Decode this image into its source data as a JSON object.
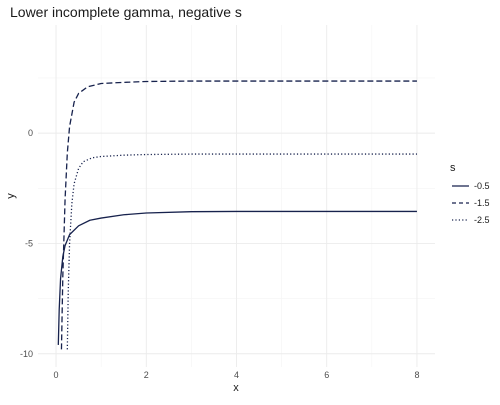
{
  "chart_data": {
    "type": "line",
    "title": "Lower incomplete gamma, negative s",
    "xlabel": "x",
    "ylabel": "y",
    "xlim": [
      -0.4,
      8.4
    ],
    "ylim": [
      -10.6,
      4.9
    ],
    "x_ticks": [
      0,
      2,
      4,
      6,
      8
    ],
    "y_ticks": [
      -10,
      -5,
      0
    ],
    "grid": true,
    "legend": {
      "title": "s",
      "position": "right"
    },
    "series": [
      {
        "name": "-0.5",
        "line_style": "solid",
        "x": [
          0.05,
          0.07,
          0.1,
          0.15,
          0.2,
          0.3,
          0.5,
          0.75,
          1,
          1.5,
          2,
          3,
          4,
          6,
          8
        ],
        "y": [
          -9.6,
          -8.0,
          -6.6,
          -5.6,
          -5.1,
          -4.6,
          -4.2,
          -3.95,
          -3.85,
          -3.7,
          -3.62,
          -3.56,
          -3.55,
          -3.55,
          -3.55
        ]
      },
      {
        "name": "-1.5",
        "line_style": "dashed",
        "x": [
          0.12,
          0.15,
          0.2,
          0.25,
          0.3,
          0.4,
          0.5,
          0.7,
          1,
          1.5,
          2,
          3,
          4,
          6,
          8
        ],
        "y": [
          -9.8,
          -6.5,
          -3.0,
          -0.9,
          0.3,
          1.4,
          1.8,
          2.1,
          2.25,
          2.3,
          2.34,
          2.36,
          2.36,
          2.36,
          2.36
        ]
      },
      {
        "name": "-2.5",
        "line_style": "dotted",
        "x": [
          0.25,
          0.27,
          0.3,
          0.35,
          0.4,
          0.5,
          0.6,
          0.8,
          1,
          1.5,
          2,
          3,
          4,
          6,
          8
        ],
        "y": [
          -9.8,
          -7.2,
          -5.0,
          -3.2,
          -2.3,
          -1.6,
          -1.3,
          -1.12,
          -1.06,
          -1.0,
          -0.97,
          -0.95,
          -0.95,
          -0.95,
          -0.95
        ]
      }
    ]
  },
  "colors": {
    "line": "#17224d",
    "panel": "#ffffff",
    "grid": "#ebebeb"
  }
}
